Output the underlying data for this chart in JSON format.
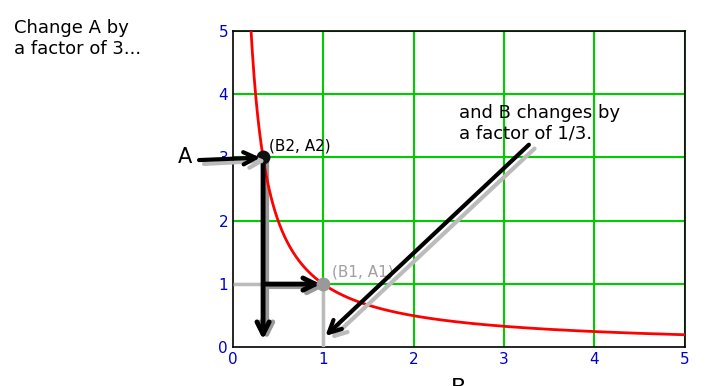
{
  "xlabel": "B",
  "ylabel": "A",
  "xlim": [
    0,
    5
  ],
  "ylim": [
    0,
    5
  ],
  "xticks": [
    0,
    1,
    2,
    3,
    4,
    5
  ],
  "yticks": [
    0,
    1,
    2,
    3,
    4,
    5
  ],
  "curve_color": "#ff0000",
  "grid_color": "#00cc00",
  "background_color": "#ffffff",
  "point1": [
    0.333,
    3.0
  ],
  "point2": [
    1.0,
    1.0
  ],
  "point1_label": "(B2, A2)",
  "point2_label": "(B1, A1)",
  "text_change_A": "Change A by\na factor of 3...",
  "text_change_B": "and B changes by\na factor of 1/3.",
  "arrow_color": "#000000",
  "shadow_color": "#aaaaaa",
  "tick_color": "#0000cc",
  "vlines": [
    1,
    2,
    3,
    4,
    5
  ],
  "hlines": [
    1,
    2,
    3,
    4,
    5
  ]
}
